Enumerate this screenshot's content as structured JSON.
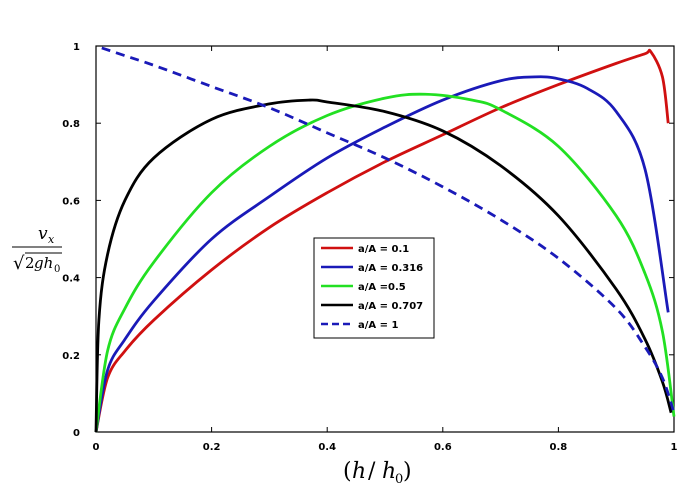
{
  "chart_data": {
    "type": "line",
    "xlabel": {
      "open": "(",
      "var": "h",
      "slash": "/",
      "var2": "h",
      "sub": "0",
      "close": ")"
    },
    "ylabel": {
      "num_var": "v",
      "num_sub": "x",
      "den_sqrt": "√",
      "den_coef": "2",
      "den_var": "gh",
      "den_sub": "0"
    },
    "xlim": [
      0,
      1
    ],
    "ylim": [
      0,
      1
    ],
    "xticks": [
      "0",
      "0.2",
      "0.4",
      "0.6",
      "0.8",
      "1"
    ],
    "yticks": [
      "0",
      "0.2",
      "0.4",
      "0.6",
      "0.8",
      "1"
    ],
    "grid": false,
    "legend_position": "center",
    "series": [
      {
        "name": "a/A = 0.1",
        "color": "#d01010",
        "dashed": false,
        "x": [
          0,
          0.02,
          0.05,
          0.1,
          0.2,
          0.3,
          0.4,
          0.5,
          0.6,
          0.7,
          0.8,
          0.9,
          0.95,
          0.96,
          0.98,
          0.99
        ],
        "y": [
          0,
          0.14,
          0.21,
          0.29,
          0.42,
          0.53,
          0.62,
          0.7,
          0.77,
          0.84,
          0.9,
          0.955,
          0.98,
          0.985,
          0.92,
          0.8
        ]
      },
      {
        "name": "a/A = 0.316",
        "color": "#1a1ab8",
        "dashed": false,
        "x": [
          0,
          0.02,
          0.05,
          0.1,
          0.2,
          0.3,
          0.4,
          0.5,
          0.6,
          0.7,
          0.76,
          0.8,
          0.85,
          0.9,
          0.95,
          0.99
        ],
        "y": [
          0,
          0.16,
          0.24,
          0.34,
          0.5,
          0.61,
          0.71,
          0.79,
          0.86,
          0.91,
          0.92,
          0.915,
          0.89,
          0.83,
          0.68,
          0.31
        ]
      },
      {
        "name": "a/A =0.5",
        "color": "#22e022",
        "dashed": false,
        "x": [
          0,
          0.02,
          0.05,
          0.1,
          0.2,
          0.3,
          0.4,
          0.5,
          0.57,
          0.65,
          0.7,
          0.8,
          0.9,
          0.95,
          0.98,
          1.0
        ],
        "y": [
          0,
          0.21,
          0.32,
          0.44,
          0.62,
          0.74,
          0.82,
          0.865,
          0.875,
          0.86,
          0.835,
          0.74,
          0.56,
          0.41,
          0.26,
          0.04
        ]
      },
      {
        "name": "a/A = 0.707",
        "color": "#000000",
        "dashed": false,
        "x": [
          0,
          0.005,
          0.02,
          0.05,
          0.1,
          0.2,
          0.3,
          0.37,
          0.4,
          0.5,
          0.6,
          0.7,
          0.8,
          0.9,
          0.95,
          0.98,
          0.995
        ],
        "y": [
          0,
          0.29,
          0.46,
          0.6,
          0.71,
          0.81,
          0.85,
          0.86,
          0.855,
          0.83,
          0.78,
          0.69,
          0.56,
          0.37,
          0.24,
          0.13,
          0.05
        ]
      },
      {
        "name": "a/A = 1",
        "color": "#1a1ab8",
        "dashed": true,
        "x": [
          0.01,
          0.05,
          0.1,
          0.2,
          0.3,
          0.4,
          0.5,
          0.6,
          0.7,
          0.8,
          0.9,
          0.95,
          0.98,
          1.0
        ],
        "y": [
          0.995,
          0.975,
          0.95,
          0.895,
          0.84,
          0.775,
          0.71,
          0.635,
          0.55,
          0.45,
          0.32,
          0.22,
          0.14,
          0.05
        ]
      }
    ]
  }
}
